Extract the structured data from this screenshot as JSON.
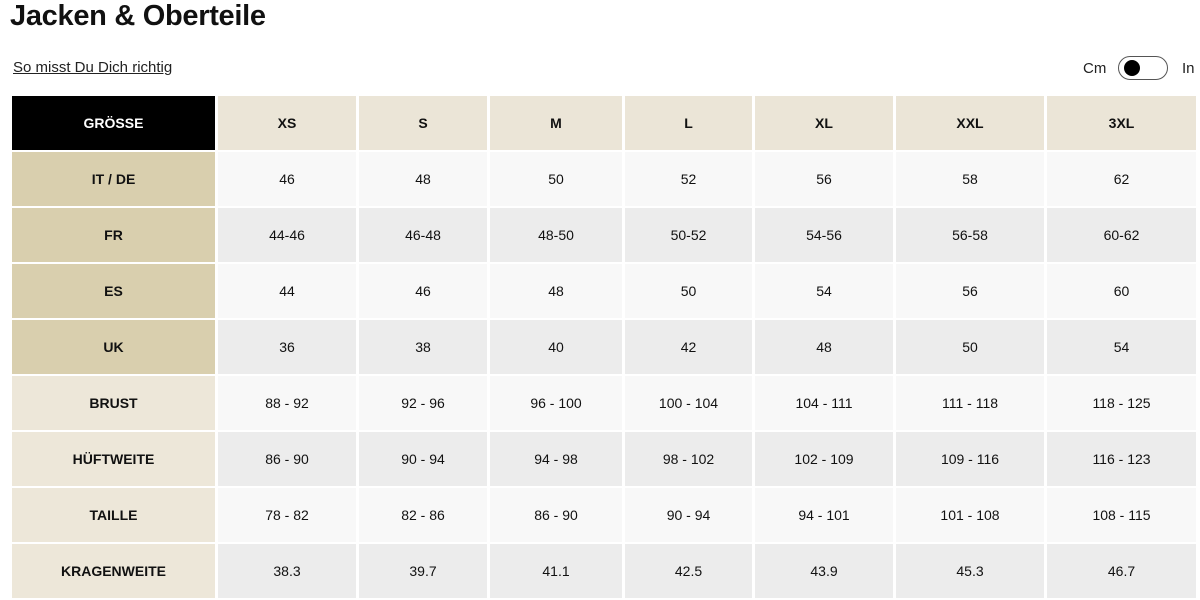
{
  "title": "Jacken & Oberteile",
  "howto_link": "So misst Du Dich richtig",
  "unit_toggle": {
    "left": "Cm",
    "right": "In",
    "selected": "Cm"
  },
  "table": {
    "corner": "GRÖSSE",
    "sizes": [
      "XS",
      "S",
      "M",
      "L",
      "XL",
      "XXL",
      "3XL"
    ],
    "rows": [
      {
        "label": "IT / DE",
        "values": [
          "46",
          "48",
          "50",
          "52",
          "56",
          "58",
          "62"
        ]
      },
      {
        "label": "FR",
        "values": [
          "44-46",
          "46-48",
          "48-50",
          "50-52",
          "54-56",
          "56-58",
          "60-62"
        ]
      },
      {
        "label": "ES",
        "values": [
          "44",
          "46",
          "48",
          "50",
          "54",
          "56",
          "60"
        ]
      },
      {
        "label": "UK",
        "values": [
          "36",
          "38",
          "40",
          "42",
          "48",
          "50",
          "54"
        ]
      },
      {
        "label": "BRUST",
        "values": [
          "88 - 92",
          "92 - 96",
          "96 - 100",
          "100 - 104",
          "104 - 111",
          "111 - 118",
          "118 - 125"
        ]
      },
      {
        "label": "HÜFTWEITE",
        "values": [
          "86 - 90",
          "90 - 94",
          "94 - 98",
          "98 - 102",
          "102 - 109",
          "109 - 116",
          "116 - 123"
        ]
      },
      {
        "label": "TAILLE",
        "values": [
          "78 - 82",
          "82 - 86",
          "86 - 90",
          "90 - 94",
          "94 - 101",
          "101 - 108",
          "108 - 115"
        ]
      },
      {
        "label": "KRAGENWEITE",
        "values": [
          "38.3",
          "39.7",
          "41.1",
          "42.5",
          "43.9",
          "45.3",
          "46.7"
        ]
      }
    ]
  }
}
